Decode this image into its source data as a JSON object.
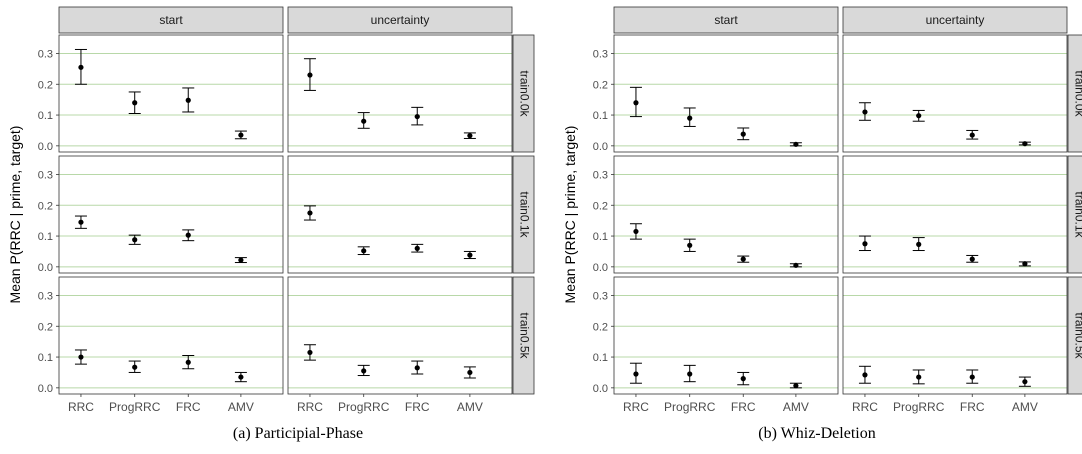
{
  "captions": {
    "left": "(a) Participial-Phase",
    "right": "(b) Whiz-Deletion"
  },
  "colors": {
    "gridline": "#b8d8a8",
    "strip_fill": "#d9d9d9",
    "panel_border": "#333333",
    "point": "#000000"
  },
  "chart_data": [
    {
      "type": "scatter",
      "title": "(a) Participial-Phase",
      "ylabel": "Mean P(RRC | prime, target)",
      "xlabel": "",
      "categories": [
        "RRC",
        "ProgRRC",
        "FRC",
        "AMV"
      ],
      "ylim": [
        -0.02,
        0.36
      ],
      "yticks": [
        "0.0",
        "0.1",
        "0.2",
        "0.3"
      ],
      "columns": [
        "start",
        "uncertainty"
      ],
      "rows": [
        "train0.0k",
        "train0.1k",
        "train0.5k"
      ],
      "grid": true,
      "panels": [
        {
          "column": "start",
          "row": "train0.0k",
          "mean": [
            0.255,
            0.14,
            0.148,
            0.035
          ],
          "lower": [
            0.2,
            0.105,
            0.11,
            0.023
          ],
          "upper": [
            0.313,
            0.175,
            0.188,
            0.048
          ]
        },
        {
          "column": "uncertainty",
          "row": "train0.0k",
          "mean": [
            0.23,
            0.08,
            0.095,
            0.033
          ],
          "lower": [
            0.18,
            0.057,
            0.068,
            0.024
          ],
          "upper": [
            0.283,
            0.108,
            0.125,
            0.042
          ]
        },
        {
          "column": "start",
          "row": "train0.1k",
          "mean": [
            0.145,
            0.088,
            0.103,
            0.022
          ],
          "lower": [
            0.125,
            0.073,
            0.085,
            0.014
          ],
          "upper": [
            0.165,
            0.103,
            0.12,
            0.03
          ]
        },
        {
          "column": "uncertainty",
          "row": "train0.1k",
          "mean": [
            0.175,
            0.052,
            0.06,
            0.038
          ],
          "lower": [
            0.152,
            0.04,
            0.048,
            0.027
          ],
          "upper": [
            0.198,
            0.065,
            0.073,
            0.05
          ]
        },
        {
          "column": "start",
          "row": "train0.5k",
          "mean": [
            0.1,
            0.067,
            0.083,
            0.035
          ],
          "lower": [
            0.077,
            0.05,
            0.062,
            0.02
          ],
          "upper": [
            0.123,
            0.087,
            0.105,
            0.05
          ]
        },
        {
          "column": "uncertainty",
          "row": "train0.5k",
          "mean": [
            0.115,
            0.055,
            0.065,
            0.05
          ],
          "lower": [
            0.09,
            0.04,
            0.045,
            0.032
          ],
          "upper": [
            0.14,
            0.073,
            0.087,
            0.068
          ]
        }
      ]
    },
    {
      "type": "scatter",
      "title": "(b) Whiz-Deletion",
      "ylabel": "Mean P(RRC | prime, target)",
      "xlabel": "",
      "categories": [
        "RRC",
        "ProgRRC",
        "FRC",
        "AMV"
      ],
      "ylim": [
        -0.02,
        0.36
      ],
      "yticks": [
        "0.0",
        "0.1",
        "0.2",
        "0.3"
      ],
      "columns": [
        "start",
        "uncertainty"
      ],
      "rows": [
        "train0.0k",
        "train0.1k",
        "train0.5k"
      ],
      "grid": true,
      "panels": [
        {
          "column": "start",
          "row": "train0.0k",
          "mean": [
            0.14,
            0.09,
            0.038,
            0.005
          ],
          "lower": [
            0.095,
            0.063,
            0.02,
            0.0
          ],
          "upper": [
            0.19,
            0.123,
            0.058,
            0.01
          ]
        },
        {
          "column": "uncertainty",
          "row": "train0.0k",
          "mean": [
            0.11,
            0.098,
            0.035,
            0.007
          ],
          "lower": [
            0.083,
            0.08,
            0.022,
            0.003
          ],
          "upper": [
            0.14,
            0.115,
            0.05,
            0.012
          ]
        },
        {
          "column": "start",
          "row": "train0.1k",
          "mean": [
            0.115,
            0.07,
            0.025,
            0.005
          ],
          "lower": [
            0.09,
            0.05,
            0.015,
            0.0
          ],
          "upper": [
            0.14,
            0.09,
            0.035,
            0.01
          ]
        },
        {
          "column": "uncertainty",
          "row": "train0.1k",
          "mean": [
            0.075,
            0.073,
            0.025,
            0.01
          ],
          "lower": [
            0.053,
            0.053,
            0.015,
            0.003
          ],
          "upper": [
            0.1,
            0.095,
            0.037,
            0.016
          ]
        },
        {
          "column": "start",
          "row": "train0.5k",
          "mean": [
            0.045,
            0.045,
            0.03,
            0.007
          ],
          "lower": [
            0.015,
            0.02,
            0.01,
            0.0
          ],
          "upper": [
            0.08,
            0.073,
            0.05,
            0.015
          ]
        },
        {
          "column": "uncertainty",
          "row": "train0.5k",
          "mean": [
            0.042,
            0.035,
            0.035,
            0.02
          ],
          "lower": [
            0.015,
            0.013,
            0.015,
            0.005
          ],
          "upper": [
            0.07,
            0.058,
            0.058,
            0.035
          ]
        }
      ]
    }
  ]
}
